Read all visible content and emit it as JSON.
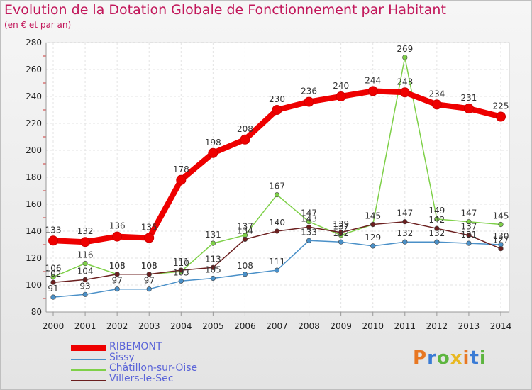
{
  "header": {
    "title": "Evolution de la Dotation Globale de Fonctionnement par Habitant",
    "subtitle": "(en € et par an)"
  },
  "logo": {
    "text": "Proxiti",
    "colors": [
      "#e87722",
      "#3a7bd5",
      "#5db53f",
      "#e8b822"
    ]
  },
  "chart_data": {
    "type": "line",
    "x": [
      "2000",
      "2001",
      "2002",
      "2003",
      "2004",
      "2005",
      "2006",
      "2007",
      "2008",
      "2009",
      "2010",
      "2011",
      "2012",
      "2013",
      "2014"
    ],
    "yticks": [
      80,
      100,
      120,
      140,
      160,
      180,
      200,
      220,
      240,
      260,
      280
    ],
    "ylim": [
      80,
      280
    ],
    "grid": true,
    "legend_position": "bottom-left",
    "series": [
      {
        "name": "RIBEMONT",
        "color": "#ee0000",
        "values": [
          133,
          132,
          136,
          135,
          178,
          198,
          208,
          230,
          236,
          240,
          244,
          243,
          234,
          231,
          225
        ]
      },
      {
        "name": "Sissy",
        "color": "#4a90c8",
        "values": [
          91,
          93,
          97,
          97,
          103,
          105,
          108,
          111,
          133,
          132,
          129,
          132,
          132,
          131,
          130
        ]
      },
      {
        "name": "Châtillon-sur-Oise",
        "color": "#7ed048",
        "values": [
          106,
          116,
          108,
          108,
          110,
          131,
          137,
          167,
          147,
          137,
          145,
          269,
          149,
          147,
          145
        ]
      },
      {
        "name": "Villers-le-Sec",
        "color": "#6b1f1f",
        "values": [
          102,
          104,
          108,
          108,
          111,
          113,
          134,
          140,
          143,
          139,
          145,
          147,
          142,
          137,
          127
        ]
      }
    ]
  }
}
